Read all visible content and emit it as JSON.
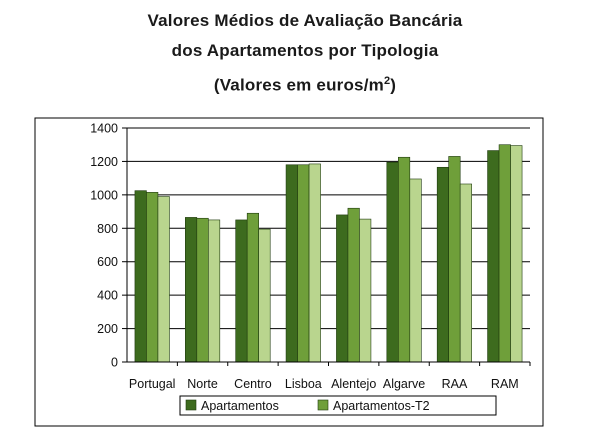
{
  "title": {
    "line1": "Valores Médios de Avaliação Bancária",
    "line2": "dos Apartamentos por Tipologia",
    "line3_prefix": "(Valores em euros/m",
    "line3_sup": "2",
    "line3_suffix": ")"
  },
  "colors": {
    "series_dark": "#3d6b1e",
    "series_mid": "#6f9f3a",
    "series_light": "#b9d58e",
    "gridline": "#000000",
    "frame": "#000000"
  },
  "chart_data": {
    "type": "bar",
    "title": "Valores Médios de Avaliação Bancária dos Apartamentos por Tipologia (Valores em euros/m2)",
    "categories": [
      "Portugal",
      "Norte",
      "Centro",
      "Lisboa",
      "Alentejo",
      "Algarve",
      "RAA",
      "RAM"
    ],
    "series": [
      {
        "name": "Apartamentos",
        "values": [
          1025,
          865,
          850,
          1180,
          880,
          1195,
          1165,
          1265
        ]
      },
      {
        "name": "",
        "values": [
          1015,
          860,
          890,
          1180,
          920,
          1225,
          1230,
          1300
        ]
      },
      {
        "name": "Apartamentos-T2",
        "values": [
          990,
          850,
          795,
          1185,
          855,
          1095,
          1065,
          1295
        ]
      }
    ],
    "ylim": [
      0,
      1400
    ],
    "yticks": [
      0,
      200,
      400,
      600,
      800,
      1000,
      1200,
      1400
    ],
    "grid": true,
    "legend_position": "bottom",
    "legend": [
      "Apartamentos",
      "Apartamentos-T2"
    ]
  }
}
